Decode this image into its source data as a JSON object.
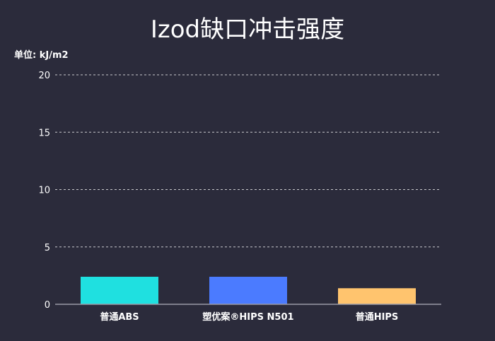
{
  "chart_data": {
    "type": "bar",
    "title": "Izod缺口冲击强度",
    "unit_label": "单位: kJ/m2",
    "categories": [
      "普通ABS",
      "塑优案®HIPS N501",
      "普通HIPS"
    ],
    "values": [
      2.4,
      2.4,
      1.4
    ],
    "colors": [
      "#1fe0e0",
      "#4b7bff",
      "#ffc46e"
    ],
    "ylim": [
      0,
      20
    ],
    "yticks": [
      0,
      5,
      10,
      15,
      20
    ],
    "grid": true,
    "legend": "none"
  }
}
